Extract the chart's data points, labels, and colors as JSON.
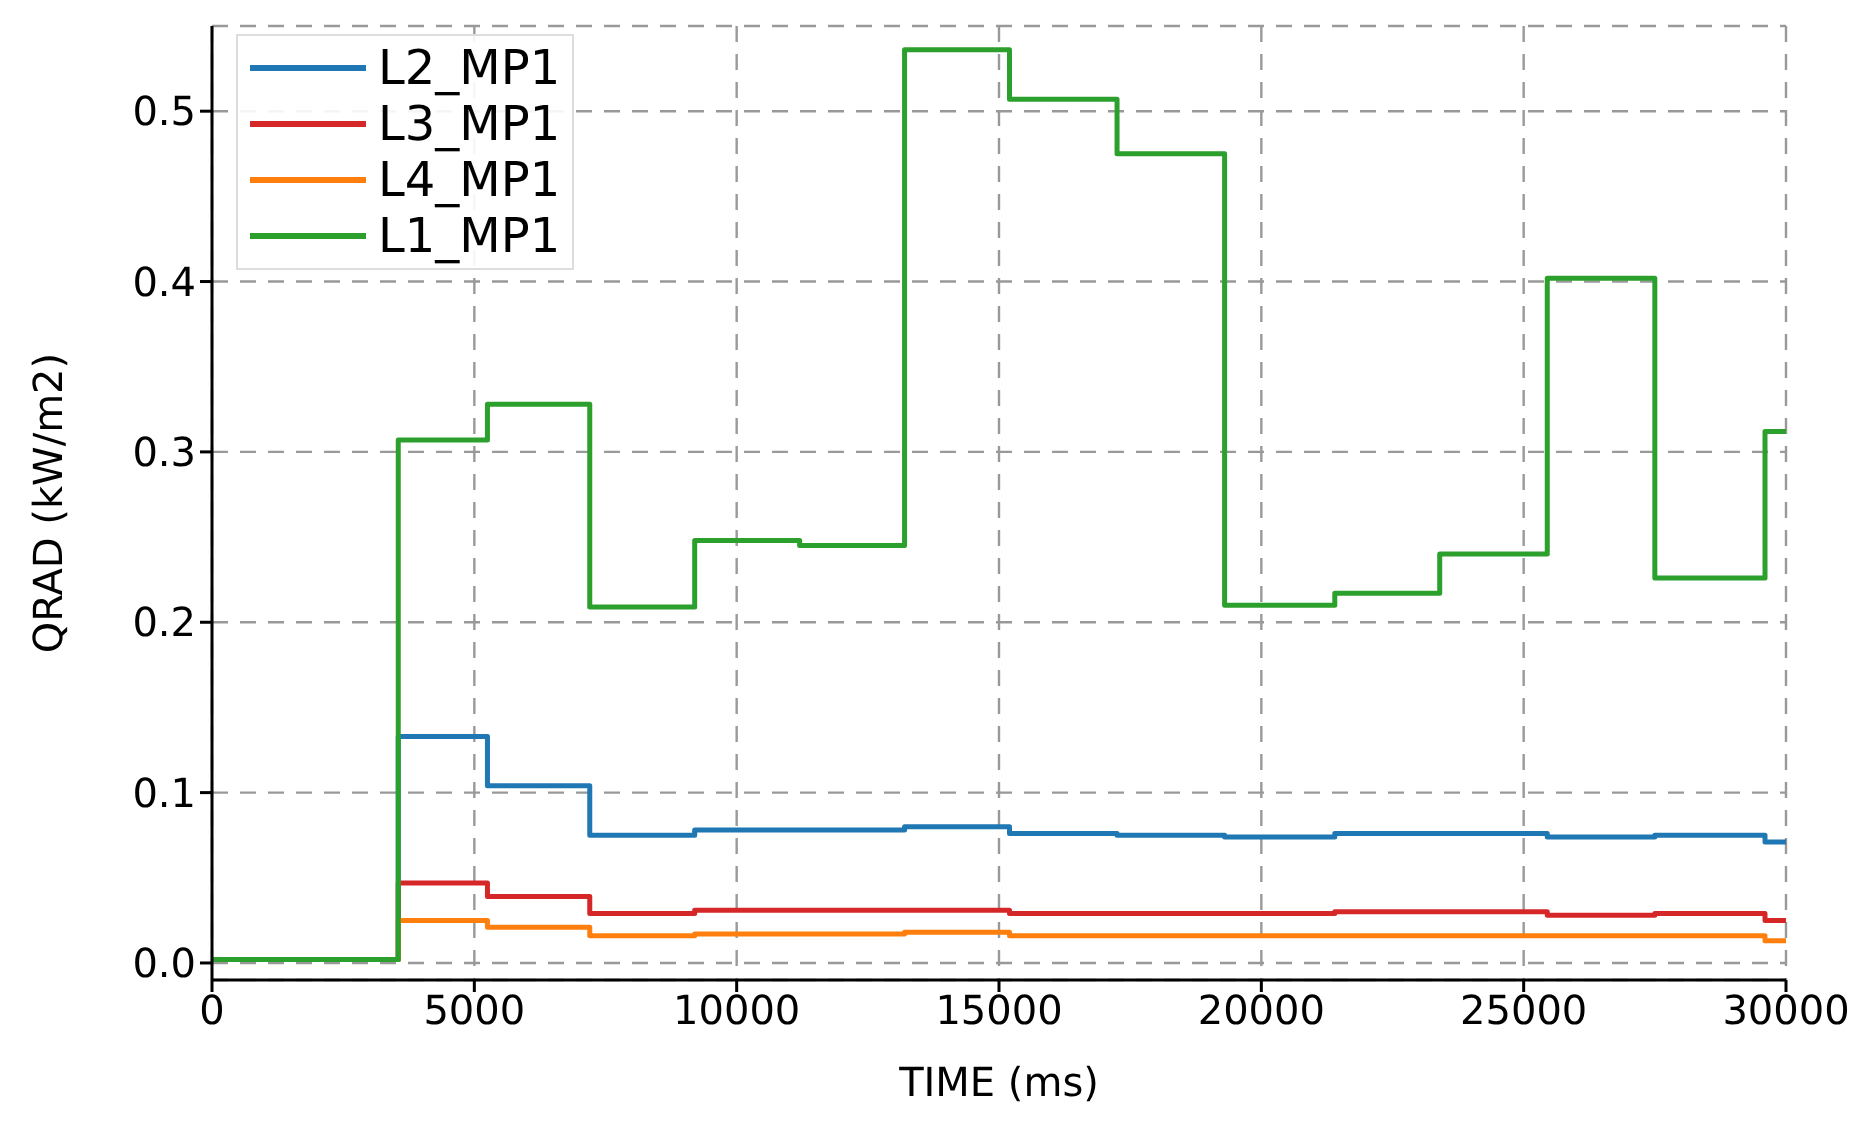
{
  "chart_data": {
    "type": "step",
    "xlabel": "TIME (ms)",
    "ylabel": "QRAD (kW/m2)",
    "x": [
      0,
      3550,
      5250,
      7200,
      9200,
      11200,
      13200,
      15200,
      17250,
      19300,
      21400,
      23400,
      25450,
      27500,
      29600,
      30000
    ],
    "series": [
      {
        "name": "L2_MP1",
        "color": "#1f77b4",
        "values": [
          0.002,
          0.133,
          0.104,
          0.075,
          0.078,
          0.078,
          0.08,
          0.076,
          0.075,
          0.074,
          0.076,
          0.076,
          0.074,
          0.075,
          0.071,
          0.071
        ]
      },
      {
        "name": "L3_MP1",
        "color": "#d62728",
        "values": [
          0.002,
          0.047,
          0.039,
          0.029,
          0.031,
          0.031,
          0.031,
          0.029,
          0.029,
          0.029,
          0.03,
          0.03,
          0.028,
          0.029,
          0.025,
          0.025
        ]
      },
      {
        "name": "L4_MP1",
        "color": "#ff7f0e",
        "values": [
          0.002,
          0.025,
          0.021,
          0.016,
          0.017,
          0.017,
          0.018,
          0.016,
          0.016,
          0.016,
          0.016,
          0.016,
          0.016,
          0.016,
          0.013,
          0.013
        ]
      },
      {
        "name": "L1_MP1",
        "color": "#2ca02c",
        "values": [
          0.002,
          0.307,
          0.328,
          0.209,
          0.248,
          0.245,
          0.536,
          0.507,
          0.475,
          0.21,
          0.217,
          0.24,
          0.402,
          0.226,
          0.312,
          0.312
        ]
      }
    ],
    "xlim": [
      0,
      30000
    ],
    "xticks": [
      0,
      5000,
      10000,
      15000,
      20000,
      25000,
      30000
    ],
    "ylim": [
      -0.01,
      0.55
    ],
    "yticks": [
      {
        "value": 0,
        "label": "0.0"
      },
      0.1,
      0.2,
      0.3,
      0.4,
      0.5
    ],
    "grid": true,
    "legend": "top left",
    "line_style": "solid"
  }
}
